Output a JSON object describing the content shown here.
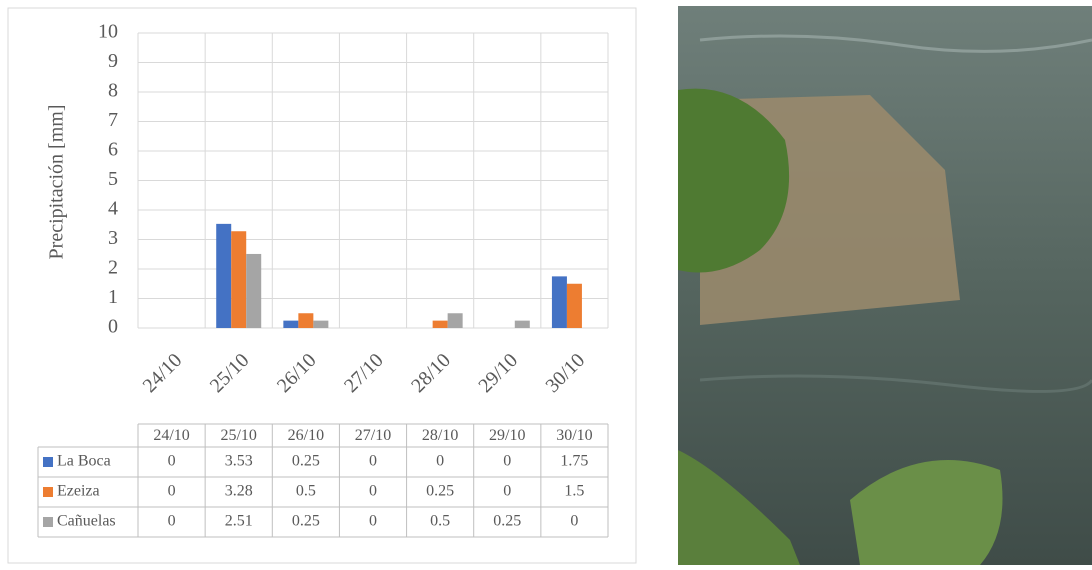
{
  "chart_data": {
    "type": "bar",
    "y_label": "Precipitación [mm]",
    "categories": [
      "24/10",
      "25/10",
      "26/10",
      "27/10",
      "28/10",
      "29/10",
      "30/10"
    ],
    "series": [
      {
        "name": "La Boca",
        "color": "#4472c4",
        "values": [
          0,
          3.53,
          0.25,
          0,
          0,
          0,
          1.75
        ]
      },
      {
        "name": "Ezeiza",
        "color": "#ed7d31",
        "values": [
          0,
          3.28,
          0.5,
          0,
          0.25,
          0,
          1.5
        ]
      },
      {
        "name": "Cañuelas",
        "color": "#a5a5a5",
        "values": [
          0,
          2.51,
          0.25,
          0,
          0.5,
          0.25,
          0
        ]
      }
    ],
    "ylim": [
      0,
      10
    ],
    "yticks": [
      0,
      1,
      2,
      3,
      4,
      5,
      6,
      7,
      8,
      9,
      10
    ],
    "grid": true,
    "data_table": true
  }
}
